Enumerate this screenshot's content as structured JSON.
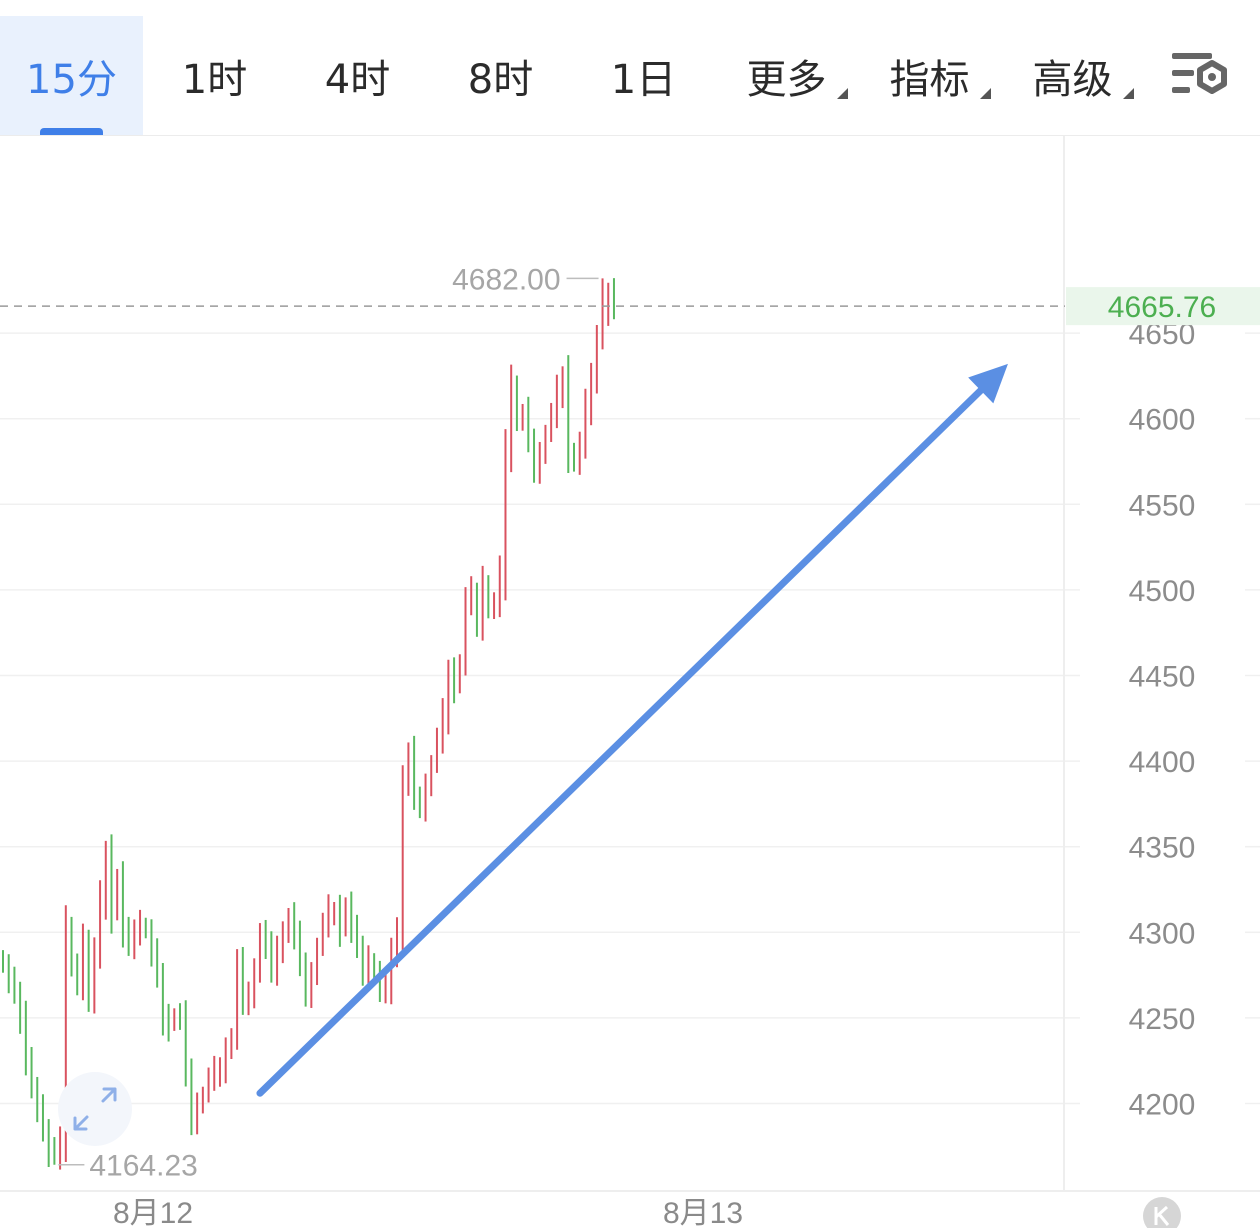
{
  "tabs": [
    {
      "label": "15分",
      "active": true
    },
    {
      "label": "1时"
    },
    {
      "label": "4时"
    },
    {
      "label": "8时"
    },
    {
      "label": "1日"
    },
    {
      "label": "更多",
      "dropdown": true
    },
    {
      "label": "指标",
      "dropdown": true
    },
    {
      "label": "高级",
      "dropdown": true
    }
  ],
  "icons": {
    "settings": "chart-settings-gear-icon",
    "zoom": "expand-arrows-icon",
    "k": "k-circle-icon"
  },
  "colors": {
    "accent": "#3f7fe8",
    "up": "#d9525f",
    "down": "#59b85f",
    "current_price": "#4caf50",
    "trend_arrow": "#5b8fe3"
  },
  "chart_data": {
    "type": "candlestick",
    "x_tick_labels": [
      "8月12",
      "8月13"
    ],
    "y_ticks": [
      4200,
      4250,
      4300,
      4350,
      4400,
      4450,
      4500,
      4550,
      4600,
      4650
    ],
    "ylim": [
      4153,
      4688
    ],
    "current_price": "4665.76",
    "high_label": "4682.00",
    "low_label": "4164.23",
    "closes": [
      4280,
      4270,
      4265,
      4250,
      4228,
      4208,
      4195,
      4185,
      4172,
      4166,
      4182,
      4298,
      4282,
      4272,
      4295,
      4260,
      4288,
      4318,
      4346,
      4312,
      4332,
      4299,
      4293,
      4302,
      4305,
      4300,
      4286,
      4275,
      4250,
      4246,
      4252,
      4248,
      4219,
      4192,
      4198,
      4206,
      4214,
      4218,
      4222,
      4230,
      4240,
      4280,
      4260,
      4266,
      4276,
      4300,
      4290,
      4278,
      4292,
      4298,
      4310,
      4296,
      4282,
      4266,
      4274,
      4292,
      4304,
      4312,
      4313,
      4302,
      4316,
      4300,
      4292,
      4278,
      4284,
      4276,
      4265,
      4268,
      4290,
      4300,
      4386,
      4403,
      4380,
      4375,
      4384,
      4399,
      4412,
      4426,
      4452,
      4444,
      4458,
      4492,
      4498,
      4482,
      4504,
      4488,
      4492,
      4509,
      4582,
      4620,
      4598,
      4602,
      4588,
      4572,
      4578,
      4592,
      4602,
      4615,
      4625,
      4582,
      4573,
      4585,
      4606,
      4626,
      4645,
      4660,
      4672,
      4665
    ],
    "arrow": {
      "from": {
        "bar": 45,
        "price": 4206
      },
      "to": {
        "bar": 176,
        "price": 4632
      }
    }
  }
}
